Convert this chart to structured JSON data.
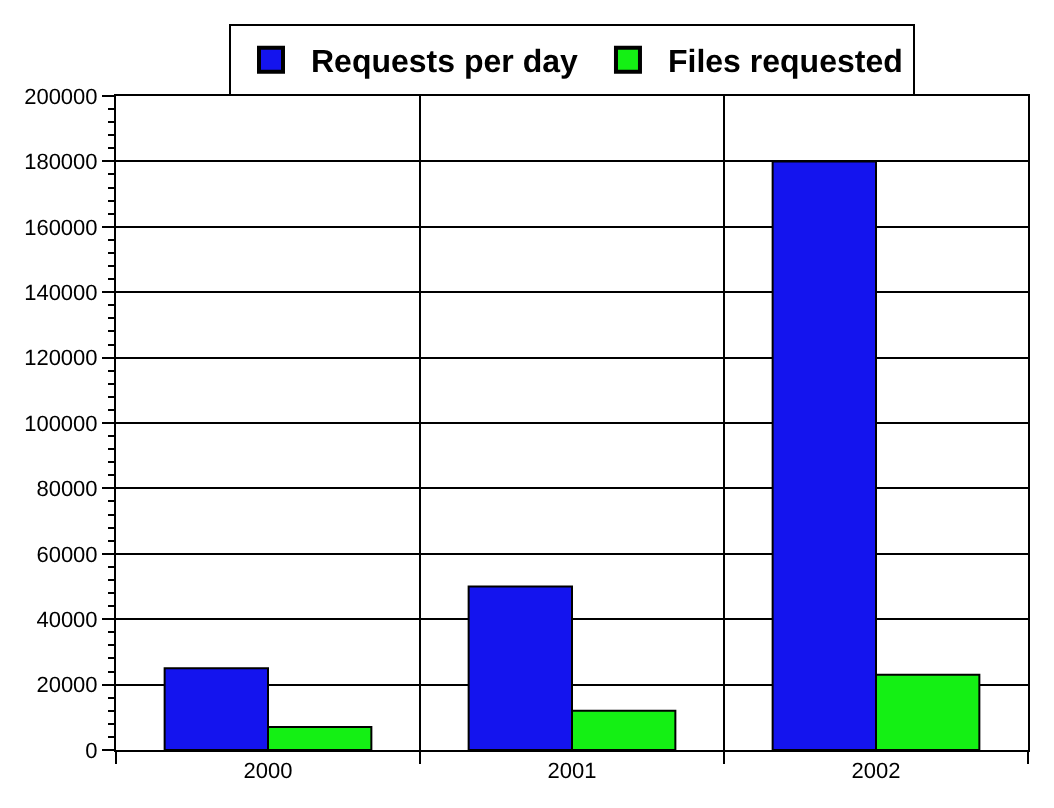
{
  "chart_data": {
    "type": "bar",
    "categories": [
      "2000",
      "2001",
      "2002"
    ],
    "series": [
      {
        "name": "Requests per day",
        "color": "#1414ee",
        "values": [
          25000,
          50000,
          180000
        ]
      },
      {
        "name": "Files requested",
        "color": "#14f014",
        "values": [
          7000,
          12000,
          23000
        ]
      }
    ],
    "ylim": [
      0,
      200000
    ],
    "yticks": [
      0,
      {
        "value": 4000,
        "label": null
      },
      {
        "value": 8000,
        "label": null
      },
      {
        "value": 12000,
        "label": null
      },
      {
        "value": 16000,
        "label": null
      },
      20000,
      {
        "value": 24000,
        "label": null
      },
      {
        "value": 28000,
        "label": null
      },
      {
        "value": 32000,
        "label": null
      },
      {
        "value": 36000,
        "label": null
      },
      40000,
      {
        "value": 44000,
        "label": null
      },
      {
        "value": 48000,
        "label": null
      },
      {
        "value": 52000,
        "label": null
      },
      {
        "value": 56000,
        "label": null
      },
      60000,
      {
        "value": 64000,
        "label": null
      },
      {
        "value": 68000,
        "label": null
      },
      {
        "value": 72000,
        "label": null
      },
      {
        "value": 76000,
        "label": null
      },
      80000,
      {
        "value": 84000,
        "label": null
      },
      {
        "value": 88000,
        "label": null
      },
      {
        "value": 92000,
        "label": null
      },
      {
        "value": 96000,
        "label": null
      },
      100000,
      {
        "value": 104000,
        "label": null
      },
      {
        "value": 108000,
        "label": null
      },
      {
        "value": 112000,
        "label": null
      },
      {
        "value": 116000,
        "label": null
      },
      120000,
      {
        "value": 124000,
        "label": null
      },
      {
        "value": 128000,
        "label": null
      },
      {
        "value": 132000,
        "label": null
      },
      {
        "value": 136000,
        "label": null
      },
      140000,
      {
        "value": 144000,
        "label": null
      },
      {
        "value": 148000,
        "label": null
      },
      {
        "value": 152000,
        "label": null
      },
      {
        "value": 156000,
        "label": null
      },
      160000,
      {
        "value": 164000,
        "label": null
      },
      {
        "value": 168000,
        "label": null
      },
      {
        "value": 172000,
        "label": null
      },
      {
        "value": 176000,
        "label": null
      },
      180000,
      {
        "value": 184000,
        "label": null
      },
      {
        "value": 188000,
        "label": null
      },
      {
        "value": 192000,
        "label": null
      },
      {
        "value": 196000,
        "label": null
      },
      200000
    ],
    "grid": true,
    "legend": "top"
  }
}
